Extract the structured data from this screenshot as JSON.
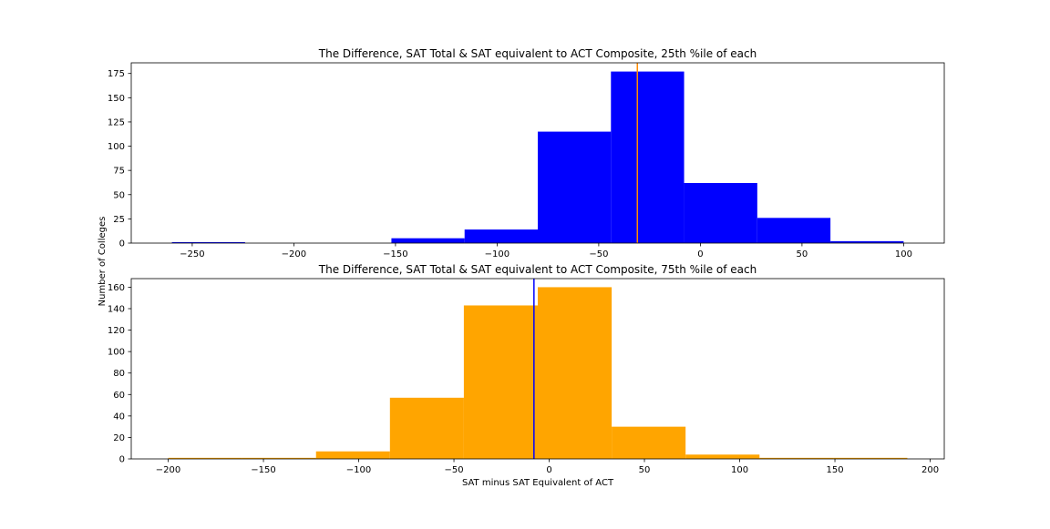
{
  "figure": {
    "ylabel": "Number of Colleges",
    "xlabel": "SAT minus SAT Equivalent of ACT"
  },
  "chart_data": [
    {
      "type": "bar",
      "subtype": "histogram",
      "title": "The Difference, SAT Total & SAT equivalent to ACT Composite, 25th %ile of each",
      "bar_color": "#0000ff",
      "bin_edges": [
        -260,
        -224,
        -188,
        -152,
        -116,
        -80,
        -44,
        -8,
        28,
        64,
        100
      ],
      "counts": [
        1,
        0,
        0,
        5,
        14,
        115,
        177,
        62,
        26,
        2
      ],
      "vline": {
        "x": -31,
        "color": "#ff8c00"
      },
      "xlim": [
        -280,
        120
      ],
      "ylim": [
        0,
        186
      ],
      "xticks": [
        -250,
        -200,
        -150,
        -100,
        -50,
        0,
        50,
        100
      ],
      "xtick_labels": [
        "−250",
        "−200",
        "−150",
        "−100",
        "−50",
        "0",
        "50",
        "100"
      ],
      "yticks": [
        0,
        25,
        50,
        75,
        100,
        125,
        150,
        175
      ],
      "ytick_labels": [
        "0",
        "25",
        "50",
        "75",
        "100",
        "125",
        "150",
        "175"
      ]
    },
    {
      "type": "bar",
      "subtype": "histogram",
      "title": "The Difference, SAT Total & SAT equivalent to ACT Composite, 75th %ile of each",
      "bar_color": "#ffa500",
      "bin_edges": [
        -200,
        -161.2,
        -122.4,
        -83.6,
        -44.8,
        -6,
        32.8,
        71.6,
        110.4,
        149.2,
        188
      ],
      "counts": [
        1,
        1,
        7,
        57,
        143,
        160,
        30,
        4,
        1,
        1
      ],
      "vline": {
        "x": -8,
        "color": "#0000ff"
      },
      "xlim": [
        -219.4,
        207.4
      ],
      "ylim": [
        0,
        168
      ],
      "xticks": [
        -200,
        -150,
        -100,
        -50,
        0,
        50,
        100,
        150,
        200
      ],
      "xtick_labels": [
        "−200",
        "−150",
        "−100",
        "−50",
        "0",
        "50",
        "100",
        "150",
        "200"
      ],
      "yticks": [
        0,
        20,
        40,
        60,
        80,
        100,
        120,
        140,
        160
      ],
      "ytick_labels": [
        "0",
        "20",
        "40",
        "60",
        "80",
        "100",
        "120",
        "140",
        "160"
      ]
    }
  ]
}
